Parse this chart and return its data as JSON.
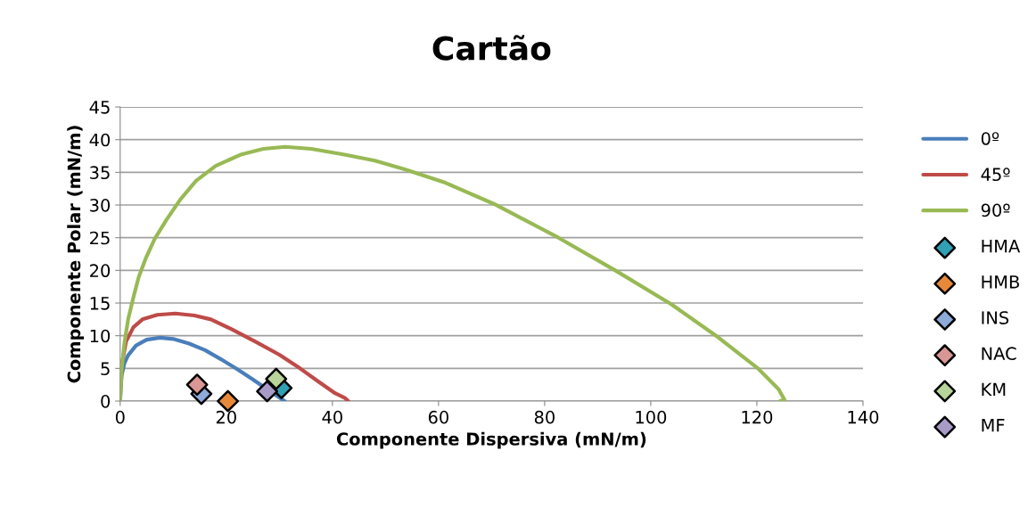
{
  "chart_data": {
    "type": "line",
    "title": "Cartão",
    "xlabel": "Componente Dispersiva (mN/m)",
    "ylabel": "Componente Polar (mN/m)",
    "xlim": [
      0,
      140
    ],
    "xticks": [
      0,
      20,
      40,
      60,
      80,
      100,
      120,
      140
    ],
    "ylim": [
      0,
      45
    ],
    "yticks": [
      0,
      5,
      10,
      15,
      20,
      25,
      30,
      35,
      40,
      45
    ],
    "grid": "y",
    "legend": "right",
    "series": [
      {
        "name": "0º",
        "marker": "none",
        "color": "#4a7ebb",
        "x": [
          0,
          0.1,
          0.3,
          0.8,
          1.5,
          3,
          5,
          7.5,
          10,
          13,
          16,
          19,
          22,
          25,
          27.5,
          29.5,
          31
        ],
        "values": [
          0,
          2,
          4,
          5.8,
          7,
          8.5,
          9.4,
          9.7,
          9.5,
          8.8,
          7.8,
          6.4,
          4.9,
          3.3,
          1.9,
          0.8,
          0
        ]
      },
      {
        "name": "45º",
        "marker": "none",
        "color": "#be4b48",
        "x": [
          0,
          0.1,
          0.4,
          1.1,
          2.5,
          4.2,
          7,
          10.4,
          14,
          17.1,
          21,
          25.5,
          30,
          33.9,
          37.5,
          40.5,
          42.3,
          43
        ],
        "values": [
          0,
          3,
          6,
          9.1,
          11.3,
          12.5,
          13.2,
          13.4,
          13.1,
          12.5,
          11,
          9.1,
          7.1,
          5,
          2.9,
          1.2,
          0.5,
          0
        ]
      },
      {
        "name": "90º",
        "marker": "none",
        "color": "#98b954",
        "x": [
          0,
          0.1,
          0.3,
          0.84,
          1.5,
          2.5,
          3.5,
          4.8,
          6.5,
          8.7,
          11.3,
          14.3,
          18,
          22.7,
          27,
          31.1,
          36,
          42.3,
          48,
          53.5,
          61.3,
          70.9,
          82.6,
          93.3,
          103.9,
          112.3,
          120.2,
          124.1,
          125.2,
          124.4
        ],
        "values": [
          0,
          1.8,
          5,
          9.1,
          12.5,
          15.9,
          19,
          21.8,
          24.8,
          27.7,
          30.8,
          33.7,
          36,
          37.7,
          38.6,
          38.9,
          38.6,
          37.7,
          36.8,
          35.5,
          33.4,
          30,
          25,
          20,
          14.8,
          10,
          5,
          1.8,
          0.2,
          0
        ]
      },
      {
        "name": "HMA",
        "type": "scatter",
        "marker": "diamond",
        "color": "#31a0b5",
        "x": [
          30.4
        ],
        "values": [
          2.0
        ]
      },
      {
        "name": "HMB",
        "type": "scatter",
        "marker": "diamond",
        "color": "#e8883a",
        "x": [
          20.3
        ],
        "values": [
          0
        ]
      },
      {
        "name": "INS",
        "type": "scatter",
        "marker": "diamond",
        "color": "#8eaadb",
        "x": [
          15.3
        ],
        "values": [
          1.1
        ]
      },
      {
        "name": "NAC",
        "type": "scatter",
        "marker": "diamond",
        "color": "#d99694",
        "x": [
          14.5
        ],
        "values": [
          2.5
        ]
      },
      {
        "name": "KM",
        "type": "scatter",
        "marker": "diamond",
        "color": "#b8d49a",
        "x": [
          29.4
        ],
        "values": [
          3.4
        ]
      },
      {
        "name": "MF",
        "type": "scatter",
        "marker": "diamond",
        "color": "#a99bc8",
        "x": [
          27.7
        ],
        "values": [
          1.5
        ]
      }
    ]
  }
}
